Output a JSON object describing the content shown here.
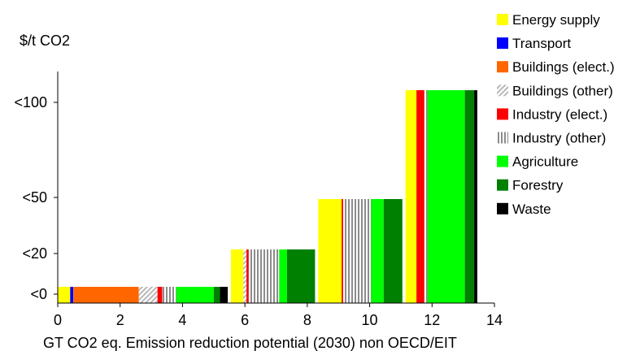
{
  "chart_data": {
    "type": "bar",
    "ylabel": "$/t CO2",
    "xlabel": "GT CO2 eq. Emission reduction potential (2030)  non OECD/EIT",
    "xlim": [
      0,
      14
    ],
    "x_ticks": [
      "0",
      "2",
      "4",
      "6",
      "8",
      "10",
      "12",
      "14"
    ],
    "y_categories": [
      "<0",
      "<20",
      "<50",
      "<100"
    ],
    "legend_position": "right",
    "series": [
      {
        "name": "Energy supply",
        "color": "#ffff00",
        "pattern": "solid"
      },
      {
        "name": "Transport",
        "color": "#0000ff",
        "pattern": "solid"
      },
      {
        "name": "Buildings (elect.)",
        "color": "#ff6600",
        "pattern": "solid"
      },
      {
        "name": "Buildings (other)",
        "color": "#c0c0c0",
        "pattern": "diagonal"
      },
      {
        "name": "Industry (elect.)",
        "color": "#ff0000",
        "pattern": "solid"
      },
      {
        "name": "Industry (other)",
        "color": "#808080",
        "pattern": "vertical"
      },
      {
        "name": "Agriculture",
        "color": "#00ff00",
        "pattern": "solid"
      },
      {
        "name": "Forestry",
        "color": "#008000",
        "pattern": "solid"
      },
      {
        "name": "Waste",
        "color": "#000000",
        "pattern": "solid"
      }
    ],
    "segments": [
      {
        "cost": "<0",
        "series": "Energy supply",
        "x0": 0.0,
        "x1": 0.4
      },
      {
        "cost": "<0",
        "series": "Transport",
        "x0": 0.4,
        "x1": 0.5
      },
      {
        "cost": "<0",
        "series": "Buildings (elect.)",
        "x0": 0.5,
        "x1": 2.6
      },
      {
        "cost": "<0",
        "series": "Buildings (other)",
        "x0": 2.6,
        "x1": 3.2
      },
      {
        "cost": "<0",
        "series": "Industry (elect.)",
        "x0": 3.2,
        "x1": 3.35
      },
      {
        "cost": "<0",
        "series": "Industry (other)",
        "x0": 3.35,
        "x1": 3.8
      },
      {
        "cost": "<0",
        "series": "Agriculture",
        "x0": 3.8,
        "x1": 5.0
      },
      {
        "cost": "<0",
        "series": "Forestry",
        "x0": 5.0,
        "x1": 5.2
      },
      {
        "cost": "<0",
        "series": "Waste",
        "x0": 5.2,
        "x1": 5.45
      },
      {
        "cost": "<20",
        "series": "Energy supply",
        "x0": 5.55,
        "x1": 5.95
      },
      {
        "cost": "<20",
        "series": "Buildings (other)",
        "x0": 5.95,
        "x1": 6.05
      },
      {
        "cost": "<20",
        "series": "Industry (elect.)",
        "x0": 6.05,
        "x1": 6.12
      },
      {
        "cost": "<20",
        "series": "Industry (other)",
        "x0": 6.12,
        "x1": 7.1
      },
      {
        "cost": "<20",
        "series": "Agriculture",
        "x0": 7.1,
        "x1": 7.35
      },
      {
        "cost": "<20",
        "series": "Forestry",
        "x0": 7.35,
        "x1": 8.25
      },
      {
        "cost": "<50",
        "series": "Energy supply",
        "x0": 8.35,
        "x1": 9.1
      },
      {
        "cost": "<50",
        "series": "Industry (elect.)",
        "x0": 9.1,
        "x1": 9.15
      },
      {
        "cost": "<50",
        "series": "Industry (other)",
        "x0": 9.15,
        "x1": 10.05
      },
      {
        "cost": "<50",
        "series": "Agriculture",
        "x0": 10.05,
        "x1": 10.45
      },
      {
        "cost": "<50",
        "series": "Forestry",
        "x0": 10.45,
        "x1": 11.05
      },
      {
        "cost": "<100",
        "series": "Energy supply",
        "x0": 11.15,
        "x1": 11.5
      },
      {
        "cost": "<100",
        "series": "Industry (elect.)",
        "x0": 11.5,
        "x1": 11.75
      },
      {
        "cost": "<100",
        "series": "Industry (other)",
        "x0": 11.75,
        "x1": 11.85
      },
      {
        "cost": "<100",
        "series": "Agriculture",
        "x0": 11.85,
        "x1": 13.05
      },
      {
        "cost": "<100",
        "series": "Forestry",
        "x0": 13.05,
        "x1": 13.35
      },
      {
        "cost": "<100",
        "series": "Waste",
        "x0": 13.35,
        "x1": 13.45
      }
    ]
  }
}
